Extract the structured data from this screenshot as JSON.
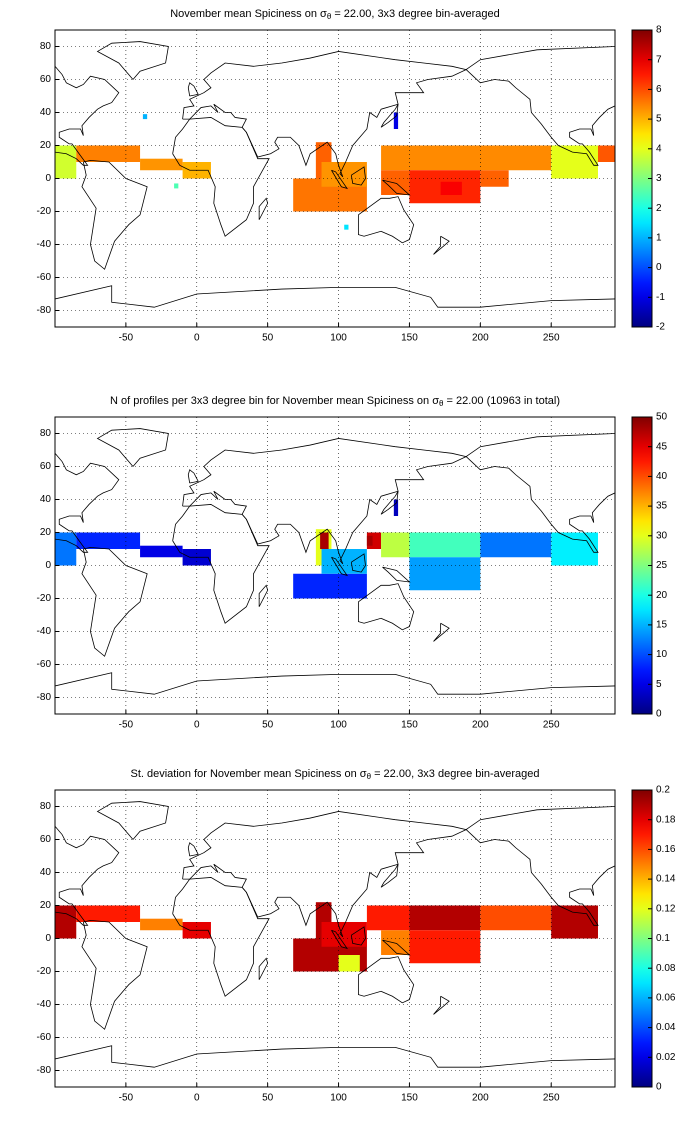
{
  "chart_data": [
    {
      "type": "heatmap",
      "title_before": "November mean Spiciness on ",
      "title_symbol": "σ",
      "title_subscript": "θ",
      "title_after": " = 22.00, 3x3 degree bin-averaged",
      "xlim": [
        -100,
        295
      ],
      "ylim": [
        -90,
        90
      ],
      "xticks": [
        -50,
        0,
        50,
        100,
        150,
        200,
        250
      ],
      "yticks": [
        -80,
        -60,
        -40,
        -20,
        0,
        20,
        40,
        60,
        80
      ],
      "grid": true,
      "colormap": "jet",
      "clim": [
        -2,
        8
      ],
      "cticks": [
        -2,
        -1,
        0,
        1,
        2,
        3,
        4,
        5,
        6,
        7,
        8
      ],
      "cells": {
        "x0": [
          -100,
          -85,
          -40,
          -10,
          -38,
          -16,
          84,
          68,
          88,
          104,
          139,
          130,
          250,
          150,
          130,
          200,
          283,
          172
        ],
        "x1": [
          -85,
          -40,
          -10,
          10,
          -35,
          -13,
          95,
          120,
          120,
          107,
          142,
          250,
          283,
          200,
          150,
          220,
          295,
          187
        ],
        "y0": [
          0,
          10,
          5,
          0,
          36,
          -6,
          0,
          -20,
          -5,
          -31,
          30,
          5,
          0,
          -15,
          -10,
          -5,
          10,
          -10
        ],
        "y1": [
          20,
          20,
          12,
          10,
          39,
          -3,
          22,
          0,
          10,
          -28,
          40,
          20,
          20,
          5,
          5,
          5,
          20,
          -2
        ],
        "values": [
          3.8,
          5.5,
          5.3,
          5.0,
          1.0,
          2.5,
          5.8,
          5.6,
          5.3,
          1.5,
          -1.0,
          5.4,
          4.0,
          6.4,
          5.8,
          5.8,
          5.9,
          6.8
        ]
      }
    },
    {
      "type": "heatmap",
      "title_before": "N of profiles per 3x3 degree bin for November mean Spiciness on ",
      "title_symbol": "σ",
      "title_subscript": "θ",
      "title_after": " = 22.00 (10963 in total)",
      "xlim": [
        -100,
        295
      ],
      "ylim": [
        -90,
        90
      ],
      "xticks": [
        -50,
        0,
        50,
        100,
        150,
        200,
        250
      ],
      "yticks": [
        -80,
        -60,
        -40,
        -20,
        0,
        20,
        40,
        60,
        80
      ],
      "grid": true,
      "colormap": "jet",
      "clim": [
        0,
        50
      ],
      "cticks": [
        0,
        5,
        10,
        15,
        20,
        25,
        30,
        35,
        40,
        45,
        50
      ],
      "cells": {
        "x0": [
          -100,
          -85,
          -40,
          -10,
          84,
          87,
          68,
          88,
          120,
          130,
          150,
          200,
          250,
          150,
          139,
          120
        ],
        "x1": [
          -85,
          -40,
          -10,
          10,
          95,
          93,
          120,
          120,
          130,
          150,
          200,
          250,
          283,
          200,
          142,
          124
        ],
        "y0": [
          0,
          10,
          5,
          0,
          0,
          10,
          -20,
          -5,
          10,
          5,
          5,
          5,
          0,
          -15,
          30,
          12
        ],
        "y1": [
          20,
          20,
          12,
          10,
          22,
          20,
          -5,
          10,
          20,
          20,
          20,
          20,
          20,
          5,
          40,
          18
        ],
        "values": [
          12,
          8,
          5,
          4,
          30,
          48,
          8,
          15,
          46,
          28,
          22,
          12,
          18,
          14,
          3,
          48
        ]
      }
    },
    {
      "type": "heatmap",
      "title_before": "St. deviation for November mean Spiciness on ",
      "title_symbol": "σ",
      "title_subscript": "θ",
      "title_after": " = 22.00, 3x3 degree bin-averaged",
      "xlim": [
        -100,
        295
      ],
      "ylim": [
        -90,
        90
      ],
      "xticks": [
        -50,
        0,
        50,
        100,
        150,
        200,
        250
      ],
      "yticks": [
        -80,
        -60,
        -40,
        -20,
        0,
        20,
        40,
        60,
        80
      ],
      "grid": true,
      "colormap": "jet",
      "clim": [
        0,
        0.2
      ],
      "cticks": [
        0,
        0.02,
        0.04,
        0.06,
        0.08,
        0.1,
        0.12,
        0.14,
        0.16,
        0.18,
        0.2
      ],
      "cells": {
        "x0": [
          -100,
          -85,
          -40,
          -10,
          84,
          68,
          88,
          120,
          150,
          200,
          250,
          150,
          100,
          130
        ],
        "x1": [
          -85,
          -40,
          -10,
          10,
          95,
          120,
          120,
          150,
          200,
          250,
          283,
          200,
          115,
          150
        ],
        "y0": [
          0,
          10,
          5,
          0,
          0,
          -20,
          -5,
          5,
          5,
          5,
          0,
          -15,
          -20,
          -10
        ],
        "y1": [
          20,
          20,
          12,
          10,
          22,
          0,
          10,
          20,
          20,
          20,
          20,
          5,
          -10,
          5
        ],
        "values": [
          0.19,
          0.17,
          0.15,
          0.18,
          0.19,
          0.19,
          0.18,
          0.17,
          0.19,
          0.16,
          0.19,
          0.17,
          0.12,
          0.15
        ]
      }
    }
  ]
}
